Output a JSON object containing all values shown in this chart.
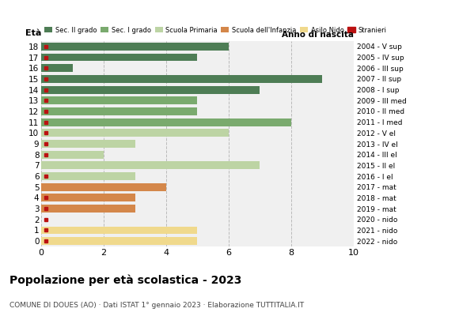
{
  "ages": [
    18,
    17,
    16,
    15,
    14,
    13,
    12,
    11,
    10,
    9,
    8,
    7,
    6,
    5,
    4,
    3,
    2,
    1,
    0
  ],
  "years": [
    "2004 - V sup",
    "2005 - IV sup",
    "2006 - III sup",
    "2007 - II sup",
    "2008 - I sup",
    "2009 - III med",
    "2010 - II med",
    "2011 - I med",
    "2012 - V el",
    "2013 - IV el",
    "2014 - III el",
    "2015 - II el",
    "2016 - I el",
    "2017 - mat",
    "2018 - mat",
    "2019 - mat",
    "2020 - nido",
    "2021 - nido",
    "2022 - nido"
  ],
  "values": [
    6,
    5,
    1,
    9,
    7,
    5,
    5,
    8,
    6,
    3,
    2,
    7,
    3,
    4,
    3,
    3,
    0,
    5,
    5
  ],
  "stranieri_marker": [
    true,
    true,
    true,
    true,
    true,
    true,
    true,
    true,
    true,
    true,
    true,
    false,
    true,
    false,
    true,
    true,
    true,
    true,
    true
  ],
  "bar_colors_by_age": {
    "18": "#4e7d55",
    "17": "#4e7d55",
    "16": "#4e7d55",
    "15": "#4e7d55",
    "14": "#4e7d55",
    "13": "#7aaa6e",
    "12": "#7aaa6e",
    "11": "#7aaa6e",
    "10": "#bdd4a4",
    "9": "#bdd4a4",
    "8": "#bdd4a4",
    "7": "#bdd4a4",
    "6": "#bdd4a4",
    "5": "#d4874a",
    "4": "#d4874a",
    "3": "#d4874a",
    "2": "#f0d98c",
    "1": "#f0d98c",
    "0": "#f0d98c"
  },
  "legend_items": [
    {
      "label": "Sec. II grado",
      "color": "#4e7d55"
    },
    {
      "label": "Sec. I grado",
      "color": "#7aaa6e"
    },
    {
      "label": "Scuola Primaria",
      "color": "#bdd4a4"
    },
    {
      "label": "Scuola dell'Infanzia",
      "color": "#d4874a"
    },
    {
      "label": "Asilo Nido",
      "color": "#f0d98c"
    },
    {
      "label": "Stranieri",
      "color": "#bb1111"
    }
  ],
  "xlim": [
    0,
    10
  ],
  "xticks": [
    0,
    2,
    4,
    6,
    8,
    10
  ],
  "title": "Popolazione per età scolastica - 2023",
  "subtitle": "COMUNE DI DOUES (AO) · Dati ISTAT 1° gennaio 2023 · Elaborazione TUTTITALIA.IT",
  "label_left": "Età",
  "label_right": "Anno di nascita",
  "grid_color": "#bbbbbb",
  "bg_color": "#f0f0f0",
  "stranieri_color": "#bb1111"
}
